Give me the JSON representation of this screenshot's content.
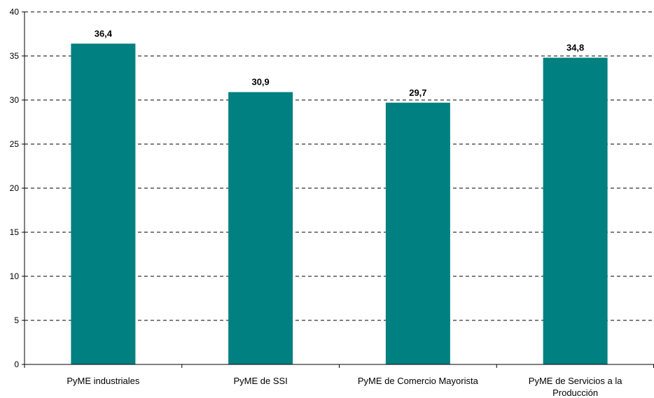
{
  "chart_data": {
    "type": "bar",
    "title": "",
    "xlabel": "",
    "ylabel": "",
    "categories": [
      [
        "PyME industriales"
      ],
      [
        "PyME de SSI"
      ],
      [
        "PyME de Comercio Mayorista"
      ],
      [
        "PyME de Servicios a la",
        "Producción"
      ]
    ],
    "values": [
      36.4,
      30.9,
      29.7,
      34.8
    ],
    "value_labels": [
      "36,4",
      "30,9",
      "29,7",
      "34,8"
    ],
    "ylim": [
      0,
      40
    ],
    "yticks": [
      0,
      5,
      10,
      15,
      20,
      25,
      30,
      35,
      40
    ],
    "grid": true,
    "grid_style": "dashed",
    "legend": "none",
    "bar_color": "#008080"
  }
}
